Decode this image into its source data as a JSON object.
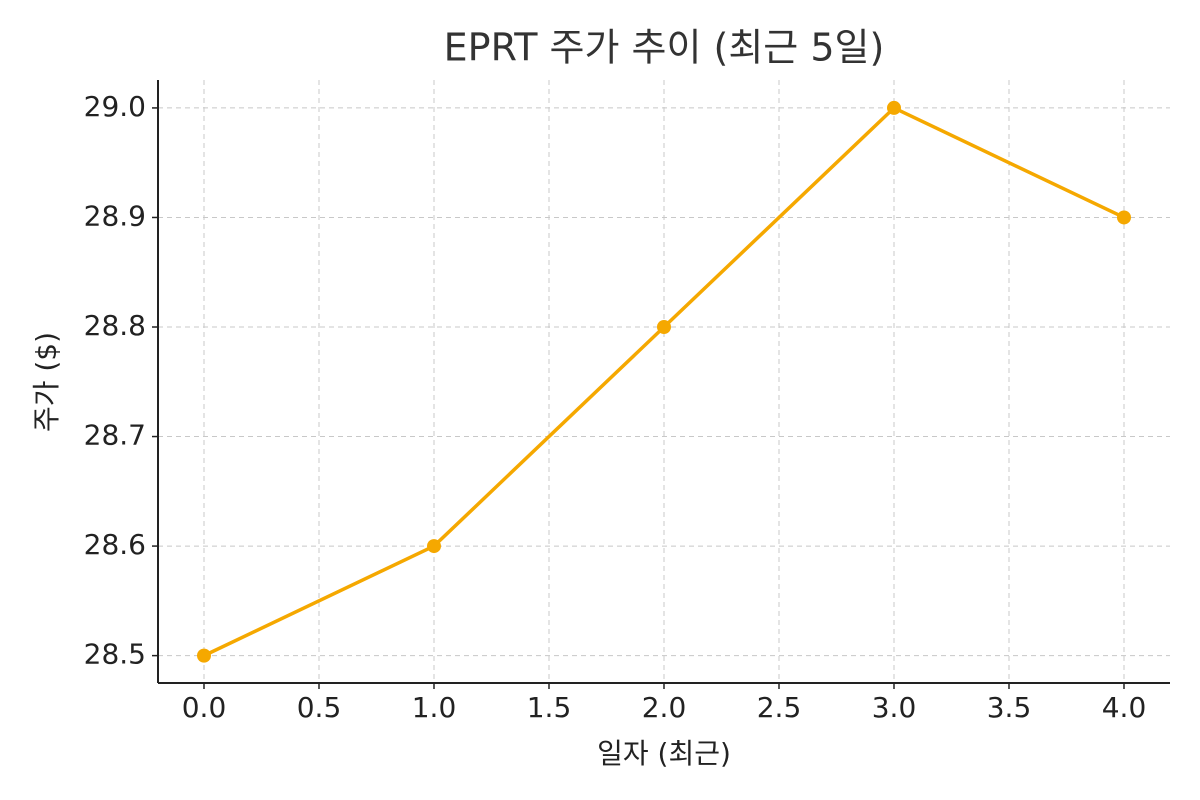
{
  "chart_data": {
    "type": "line",
    "title": "EPRT 주가 추이 (최근 5일)",
    "xlabel": "일자 (최근)",
    "ylabel": "주가 ($)",
    "x": [
      0,
      1,
      2,
      3,
      4
    ],
    "series": [
      {
        "color": "#f5a800",
        "values": [
          28.5,
          28.6,
          28.8,
          29.0,
          28.9
        ]
      }
    ],
    "xlim": [
      -0.2,
      4.2
    ],
    "xticks": [
      {
        "value": 0,
        "label": "0.0"
      },
      0.5,
      {
        "value": 1,
        "label": "1.0"
      },
      1.5,
      {
        "value": 2,
        "label": "2.0"
      },
      2.5,
      {
        "value": 3,
        "label": "3.0"
      },
      3.5,
      {
        "value": 4,
        "label": "4.0"
      }
    ],
    "ylim": [
      28.475,
      29.0255
    ],
    "yticks": [
      28.5,
      28.6,
      28.7,
      28.8,
      28.9,
      {
        "value": 29.0,
        "label": "29.0"
      }
    ],
    "grid": true
  }
}
